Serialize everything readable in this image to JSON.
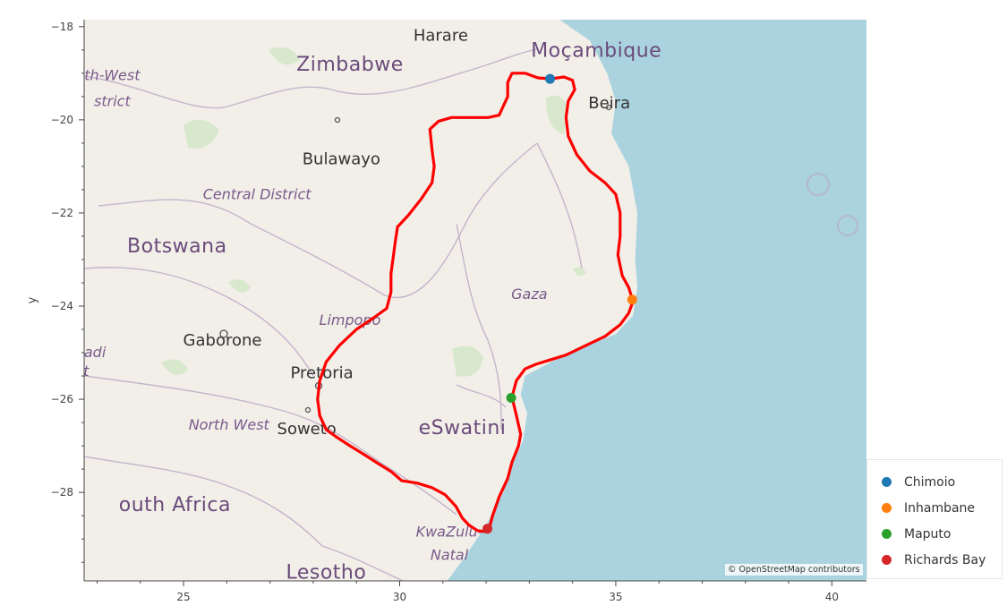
{
  "chart_data": {
    "type": "map",
    "xlabel": "",
    "ylabel": "y",
    "xlim": [
      22.7,
      40.8
    ],
    "ylim": [
      -29.9,
      -17.85
    ],
    "xticks": [
      25,
      30,
      35,
      40
    ],
    "yticks": [
      -18,
      -20,
      -22,
      -24,
      -26,
      -28
    ],
    "xtick_labels": [
      "25",
      "30",
      "35",
      "40"
    ],
    "ytick_labels": [
      "−18",
      "−20",
      "−22",
      "−24",
      "−26",
      "−28"
    ],
    "route_color": "#ff0000",
    "route": [
      [
        32.05,
        -28.85
      ],
      [
        31.8,
        -28.82
      ],
      [
        31.6,
        -28.7
      ],
      [
        31.45,
        -28.55
      ],
      [
        31.3,
        -28.3
      ],
      [
        31.05,
        -28.05
      ],
      [
        30.75,
        -27.9
      ],
      [
        30.4,
        -27.8
      ],
      [
        30.05,
        -27.75
      ],
      [
        29.8,
        -27.55
      ],
      [
        29.5,
        -27.38
      ],
      [
        29.2,
        -27.2
      ],
      [
        28.85,
        -27.0
      ],
      [
        28.55,
        -26.82
      ],
      [
        28.3,
        -26.65
      ],
      [
        28.15,
        -26.35
      ],
      [
        28.1,
        -26.0
      ],
      [
        28.15,
        -25.6
      ],
      [
        28.3,
        -25.2
      ],
      [
        28.6,
        -24.85
      ],
      [
        29.0,
        -24.5
      ],
      [
        29.4,
        -24.25
      ],
      [
        29.7,
        -24.05
      ],
      [
        29.8,
        -23.7
      ],
      [
        29.8,
        -23.3
      ],
      [
        29.85,
        -22.95
      ],
      [
        29.9,
        -22.6
      ],
      [
        29.95,
        -22.3
      ],
      [
        30.2,
        -22.05
      ],
      [
        30.5,
        -21.7
      ],
      [
        30.75,
        -21.35
      ],
      [
        30.8,
        -21.0
      ],
      [
        30.75,
        -20.65
      ],
      [
        30.7,
        -20.2
      ],
      [
        30.9,
        -20.03
      ],
      [
        31.2,
        -19.95
      ],
      [
        31.6,
        -19.95
      ],
      [
        32.05,
        -19.95
      ],
      [
        32.3,
        -19.9
      ],
      [
        32.5,
        -19.5
      ],
      [
        32.5,
        -19.2
      ],
      [
        32.6,
        -19.0
      ],
      [
        32.9,
        -19.0
      ],
      [
        33.2,
        -19.1
      ],
      [
        33.5,
        -19.12
      ],
      [
        33.8,
        -19.08
      ],
      [
        34.0,
        -19.15
      ],
      [
        34.05,
        -19.35
      ],
      [
        33.9,
        -19.6
      ],
      [
        33.85,
        -19.95
      ],
      [
        33.9,
        -20.35
      ],
      [
        34.1,
        -20.75
      ],
      [
        34.4,
        -21.1
      ],
      [
        34.75,
        -21.35
      ],
      [
        35.0,
        -21.6
      ],
      [
        35.1,
        -22.0
      ],
      [
        35.1,
        -22.5
      ],
      [
        35.05,
        -22.9
      ],
      [
        35.15,
        -23.35
      ],
      [
        35.3,
        -23.6
      ],
      [
        35.4,
        -23.9
      ],
      [
        35.3,
        -24.15
      ],
      [
        35.1,
        -24.4
      ],
      [
        34.75,
        -24.65
      ],
      [
        34.3,
        -24.85
      ],
      [
        33.85,
        -25.05
      ],
      [
        33.5,
        -25.15
      ],
      [
        33.15,
        -25.25
      ],
      [
        32.9,
        -25.35
      ],
      [
        32.7,
        -25.6
      ],
      [
        32.6,
        -25.95
      ],
      [
        32.7,
        -26.35
      ],
      [
        32.8,
        -26.75
      ],
      [
        32.75,
        -27.0
      ],
      [
        32.6,
        -27.35
      ],
      [
        32.5,
        -27.7
      ],
      [
        32.3,
        -28.1
      ],
      [
        32.15,
        -28.5
      ],
      [
        32.05,
        -28.85
      ]
    ],
    "points": [
      {
        "name": "Chimoio",
        "x": 33.48,
        "y": -19.12,
        "color": "#1f77b4"
      },
      {
        "name": "Inhambane",
        "x": 35.38,
        "y": -23.86,
        "color": "#ff7f0e"
      },
      {
        "name": "Maputo",
        "x": 32.58,
        "y": -25.97,
        "color": "#2ca02c"
      },
      {
        "name": "Richards Bay",
        "x": 32.03,
        "y": -28.78,
        "color": "#d62728"
      }
    ]
  },
  "basemap": {
    "water_color": "#aad3df",
    "land_color": "#f2efe9",
    "labels": [
      {
        "text": "Harare",
        "x": 30.95,
        "y": -18.3,
        "kind": "city"
      },
      {
        "text": "Moçambique",
        "x": 34.55,
        "y": -18.65,
        "kind": "country"
      },
      {
        "text": "Zimbabwe",
        "x": 28.85,
        "y": -18.95,
        "kind": "country"
      },
      {
        "text": "Beira",
        "x": 34.85,
        "y": -19.75,
        "kind": "city"
      },
      {
        "text": "th-West",
        "x": 23.35,
        "y": -19.15,
        "kind": "region"
      },
      {
        "text": "strict",
        "x": 23.35,
        "y": -19.7,
        "kind": "region"
      },
      {
        "text": "Bulawayo",
        "x": 28.65,
        "y": -20.95,
        "kind": "city"
      },
      {
        "text": "Central District",
        "x": 26.7,
        "y": -21.7,
        "kind": "region"
      },
      {
        "text": "Botswana",
        "x": 24.85,
        "y": -22.85,
        "kind": "country"
      },
      {
        "text": "Gaza",
        "x": 33.0,
        "y": -23.85,
        "kind": "region"
      },
      {
        "text": "Limpopo",
        "x": 28.85,
        "y": -24.4,
        "kind": "region"
      },
      {
        "text": "Gaborone",
        "x": 25.9,
        "y": -24.85,
        "kind": "city"
      },
      {
        "text": "adi",
        "x": 22.95,
        "y": -25.1,
        "kind": "region"
      },
      {
        "text": "t",
        "x": 22.75,
        "y": -25.5,
        "kind": "region"
      },
      {
        "text": "Pretoria",
        "x": 28.2,
        "y": -25.55,
        "kind": "city"
      },
      {
        "text": "North West",
        "x": 26.05,
        "y": -26.65,
        "kind": "region"
      },
      {
        "text": "Soweto",
        "x": 27.85,
        "y": -26.75,
        "kind": "city"
      },
      {
        "text": "eSwatini",
        "x": 31.45,
        "y": -26.75,
        "kind": "country"
      },
      {
        "text": "outh Africa",
        "x": 24.8,
        "y": -28.4,
        "kind": "country"
      },
      {
        "text": "KwaZulu-",
        "x": 31.15,
        "y": -28.95,
        "kind": "region"
      },
      {
        "text": "Natal",
        "x": 31.15,
        "y": -29.45,
        "kind": "region"
      },
      {
        "text": "Lesotho",
        "x": 28.3,
        "y": -29.85,
        "kind": "country"
      }
    ]
  },
  "legend": {
    "items": [
      {
        "label": "Chimoio",
        "color": "#1f77b4"
      },
      {
        "label": "Inhambane",
        "color": "#ff7f0e"
      },
      {
        "label": "Maputo",
        "color": "#2ca02c"
      },
      {
        "label": "Richards Bay",
        "color": "#d62728"
      }
    ]
  },
  "attribution": {
    "prefix": "© ",
    "link_text": "OpenStreetMap",
    "suffix": " contributors"
  }
}
